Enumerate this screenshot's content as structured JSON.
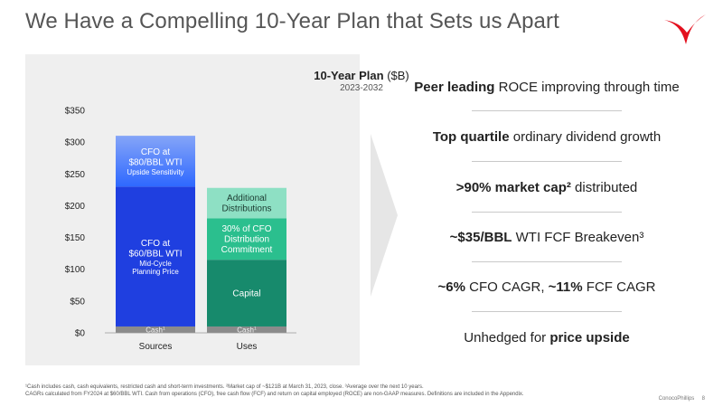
{
  "slide_title": "We Have a Compelling 10-Year Plan that Sets us Apart",
  "colors": {
    "brand_red": "#e3101e",
    "cfo80": "#2e68ff",
    "cfo60": "#1f3fe0",
    "cash": "#8b8b8b",
    "capital": "#178a6c",
    "commitment": "#2bbf8e",
    "additional": "#8ee0c4"
  },
  "chart_data": {
    "type": "bar",
    "stacked": true,
    "title": "10-Year Plan",
    "title_unit": "($B)",
    "subtitle": "2023-2032",
    "categories": [
      "Sources",
      "Uses"
    ],
    "ylim": [
      0,
      350
    ],
    "yticks": [
      "$0",
      "$50",
      "$100",
      "$150",
      "$200",
      "$250",
      "$300",
      "$350"
    ],
    "ytick_values": [
      0,
      50,
      100,
      150,
      200,
      250,
      300,
      350
    ],
    "grid": false,
    "bars": [
      {
        "category": "Sources",
        "segments": [
          {
            "key": "cash",
            "label": "Cash",
            "sup": "1",
            "from": 0,
            "to": 10
          },
          {
            "key": "cfo60",
            "label": [
              "CFO at",
              "$60/BBL WTI"
            ],
            "sublabel": [
              "Mid-Cycle",
              "Planning Price"
            ],
            "from": 10,
            "to": 230
          },
          {
            "key": "cfo80",
            "label": [
              "CFO at",
              "$80/BBL WTI"
            ],
            "sublabel": [
              "Upside Sensitivity"
            ],
            "from": 230,
            "to": 310
          }
        ]
      },
      {
        "category": "Uses",
        "segments": [
          {
            "key": "cash",
            "label": "Cash",
            "sup": "1",
            "from": 0,
            "to": 10
          },
          {
            "key": "capital",
            "label": [
              "Capital"
            ],
            "from": 10,
            "to": 115
          },
          {
            "key": "commitment",
            "label": [
              "30% of CFO",
              "Distribution",
              "Commitment"
            ],
            "from": 115,
            "to": 180
          },
          {
            "key": "additional",
            "label": [
              "Additional",
              "Distributions"
            ],
            "from": 180,
            "to": 228
          }
        ]
      }
    ]
  },
  "bullets": [
    {
      "bold": "Peer leading",
      "rest": " ROCE improving through time"
    },
    {
      "bold": "Top quartile",
      "rest": " ordinary dividend growth"
    },
    {
      "bold": ">90% market cap²",
      "rest": " distributed"
    },
    {
      "bold": "~$35/BBL",
      "rest": " WTI FCF Breakeven³"
    },
    {
      "bold": "~6%",
      "rest": " CFO CAGR, ",
      "bold2": "~11%",
      "rest2": " FCF CAGR"
    },
    {
      "pre": "Unhedged for ",
      "bold": "price upside",
      "rest": ""
    }
  ],
  "footnotes": [
    "¹Cash includes cash, cash equivalents, restricted cash and short-term investments. ²Market cap of ~$121B at March 31, 2023, close. ³Average over the next 10 years.",
    "CAGRs calculated from FY2024 at $60/BBL WTI. Cash from operations (CFO), free cash flow (FCF) and return on capital employed (ROCE) are non-GAAP measures. Definitions are included in the Appendix."
  ],
  "footer": {
    "company": "ConocoPhillips",
    "page": "8"
  }
}
